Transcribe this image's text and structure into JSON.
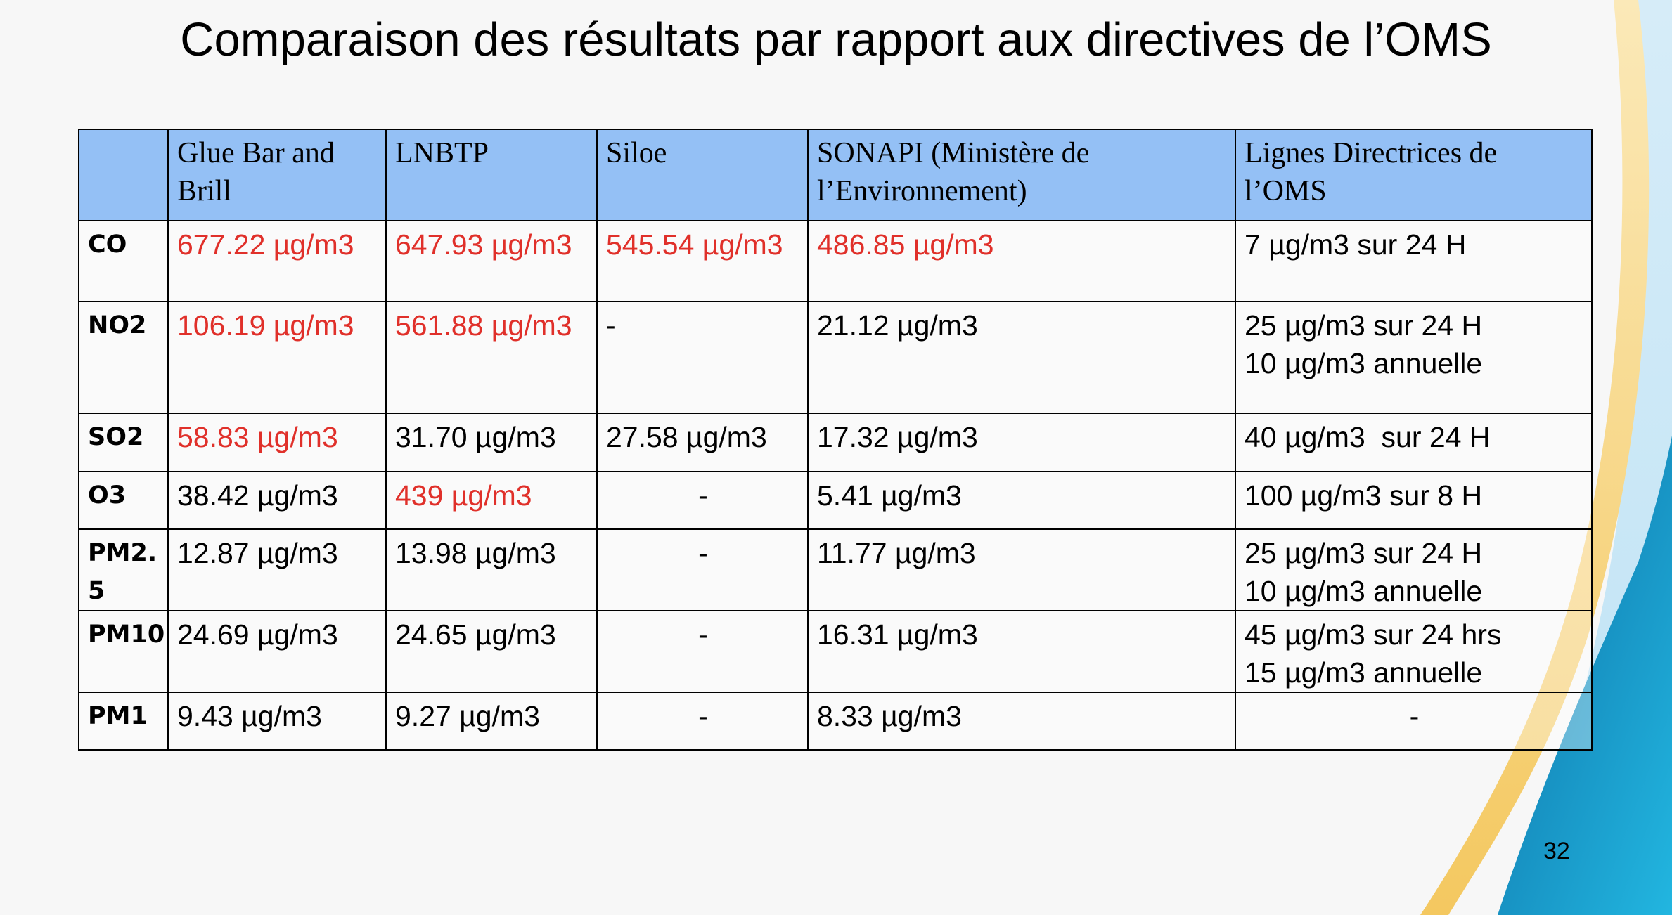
{
  "slide": {
    "title": "Comparaison des résultats par rapport aux directives de l’OMS",
    "page_number": "32"
  },
  "table": {
    "headers": [
      "",
      "Glue Bar and Brill",
      "LNBTP",
      "Siloe",
      "SONAPI (Ministère de l’Environnement)",
      "Lignes Directrices de l’OMS"
    ],
    "rows": [
      {
        "pollutant": "CO",
        "glue": "677.22 µg/m3",
        "lnbtp": "647.93 µg/m3",
        "siloe": "545.54 µg/m3",
        "sonapi": "486.85 µg/m3",
        "oms": [
          "7 µg/m3 sur 24 H"
        ]
      },
      {
        "pollutant": "NO2",
        "glue": "106.19 µg/m3",
        "lnbtp": "561.88 µg/m3",
        "siloe": "-",
        "sonapi": "21.12 µg/m3",
        "oms": [
          "25 µg/m3 sur 24 H",
          "10 µg/m3 annuelle"
        ]
      },
      {
        "pollutant": "SO2",
        "glue": "58.83 µg/m3",
        "lnbtp": "31.70 µg/m3",
        "siloe": "27.58 µg/m3",
        "sonapi": "17.32 µg/m3",
        "oms": [
          "40 µg/m3  sur 24 H"
        ]
      },
      {
        "pollutant": "O3",
        "glue": "38.42 µg/m3",
        "lnbtp": "439 µg/m3",
        "siloe": "-",
        "sonapi": "5.41 µg/m3",
        "oms": [
          "100 µg/m3 sur 8 H"
        ]
      },
      {
        "pollutant": "PM2.5",
        "glue": "12.87 µg/m3",
        "lnbtp": "13.98 µg/m3",
        "siloe": "-",
        "sonapi": "11.77 µg/m3",
        "oms": [
          "25 µg/m3 sur 24 H",
          "10 µg/m3 annuelle"
        ]
      },
      {
        "pollutant": "PM10",
        "glue": "24.69 µg/m3",
        "lnbtp": "24.65 µg/m3",
        "siloe": "-",
        "sonapi": "16.31 µg/m3",
        "oms": [
          "45 µg/m3 sur 24 hrs",
          "15 µg/m3 annuelle"
        ]
      },
      {
        "pollutant": "PM1",
        "glue": "9.43 µg/m3",
        "lnbtp": "9.27 µg/m3",
        "siloe": "-",
        "sonapi": "8.33 µg/m3",
        "oms": [
          "-"
        ]
      }
    ]
  },
  "colors": {
    "header_background": "#94c0f5",
    "exceeds_limit_text": "#e0302a",
    "decor_blue": "#1aa8d6",
    "decor_yellow": "#f6d27a"
  }
}
